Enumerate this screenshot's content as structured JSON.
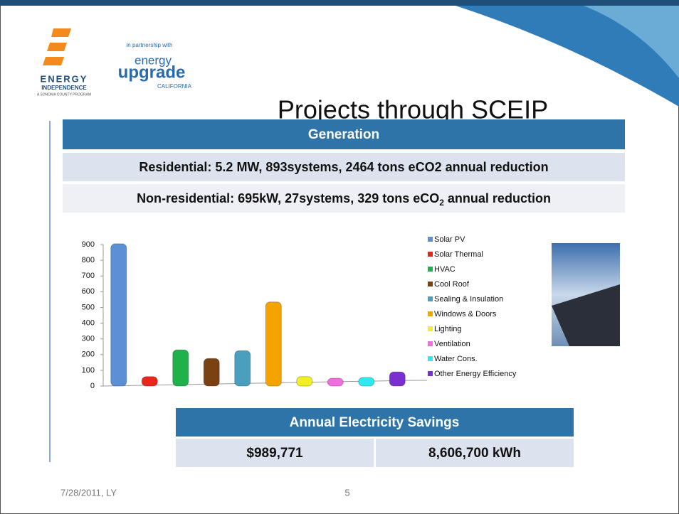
{
  "logo": {
    "brand": "ENERGY",
    "brand_sub": "INDEPENDENCE",
    "program": "A SONOMA COUNTY PROGRAM",
    "partner_note": "in partnership with",
    "partner_top": "energy",
    "partner_main": "upgrade",
    "partner_sub": "CALIFORNIA"
  },
  "title": "Projects through SCEIP",
  "generation": {
    "header": "Generation",
    "residential": "Residential:  5.2 MW, 893systems, 2464 tons eCO2 annual reduction",
    "nonresidential": {
      "before": "Non-residential: 695kW, 27systems, 329 tons eCO",
      "subscript": "2",
      "after": " annual reduction"
    }
  },
  "chart_data": {
    "type": "bar",
    "categories": [
      "Solar PV",
      "Solar Thermal",
      "HVAC",
      "Cool Roof",
      "Sealing & Insulation",
      "Windows & Doors",
      "Lighting",
      "Ventilation",
      "Water Cons.",
      "Other Energy Efficiency"
    ],
    "values": [
      905,
      60,
      230,
      175,
      225,
      535,
      60,
      50,
      55,
      90
    ],
    "colors": [
      "#5b8fd6",
      "#e8261b",
      "#1fb14a",
      "#7a4210",
      "#4a9fbf",
      "#f5a300",
      "#f0f020",
      "#f06ee0",
      "#30e8f0",
      "#7a2fd0"
    ],
    "ylim": [
      0,
      900
    ],
    "yticks": [
      0,
      100,
      200,
      300,
      400,
      500,
      600,
      700,
      800,
      900
    ],
    "grid": false,
    "legend": "right"
  },
  "savings": {
    "header": "Annual Electricity Savings",
    "cells": [
      "$989,771",
      "8,606,700 kWh"
    ]
  },
  "footer": {
    "date": "7/28/2011, LY",
    "page": "5"
  }
}
